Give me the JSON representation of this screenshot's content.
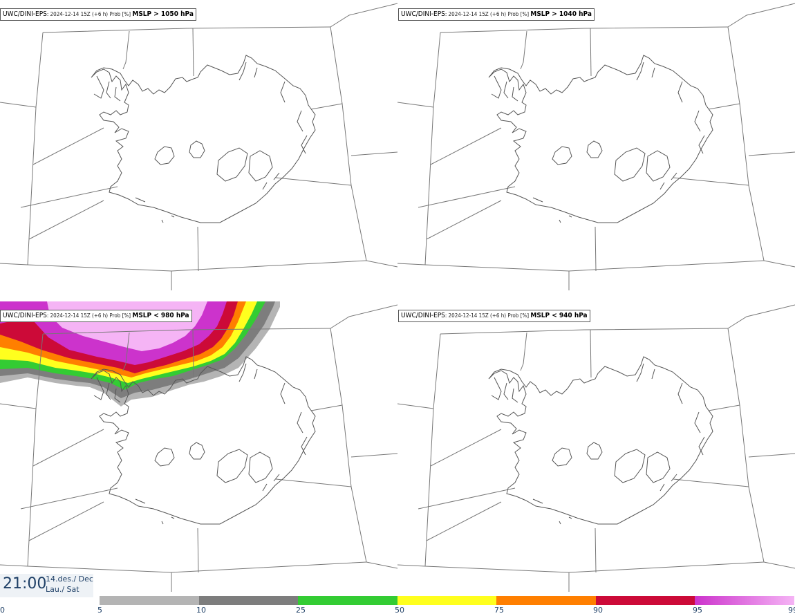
{
  "panels": [
    {
      "model": "UWC/DINI-EPS",
      "meta": ": 2024-12-14 15Z (+6 h) Prob [%] ",
      "threshold": "MSLP > 1050 hPa"
    },
    {
      "model": "UWC/DINI-EPS",
      "meta": ": 2024-12-14 15Z (+6 h) Prob [%] ",
      "threshold": "MSLP > 1040 hPa"
    },
    {
      "model": "UWC/DINI-EPS",
      "meta": ": 2024-12-14 15Z (+6 h) Prob [%] ",
      "threshold": "MSLP < 980 hPa"
    },
    {
      "model": "UWC/DINI-EPS",
      "meta": ": 2024-12-14 15Z (+6 h) Prob [%] ",
      "threshold": "MSLP < 940 hPa"
    }
  ],
  "time": {
    "clock": "21:00",
    "date": "14.des./ Dec",
    "day": "Lau./ Sat"
  },
  "legend": {
    "ticks": [
      "0",
      "5",
      "10",
      "25",
      "50",
      "75",
      "90",
      "95",
      "99"
    ],
    "bins": [
      {
        "from": 5,
        "to": 10,
        "color": "#b4b4b4"
      },
      {
        "from": 10,
        "to": 25,
        "color": "#7d7d7d"
      },
      {
        "from": 25,
        "to": 50,
        "color": "#33cc33"
      },
      {
        "from": 50,
        "to": 75,
        "color": "#ffff1e"
      },
      {
        "from": 75,
        "to": 90,
        "color": "#ff7f00"
      },
      {
        "from": 90,
        "to": 95,
        "color": "#cc0a38"
      },
      {
        "from": 95,
        "to": 99,
        "color": "#cc33cc",
        "gradient_to": "#f5b4f5"
      }
    ]
  },
  "colors": {
    "coast": "#555555",
    "grid": "#777777",
    "time_text": "#1e3f66"
  }
}
